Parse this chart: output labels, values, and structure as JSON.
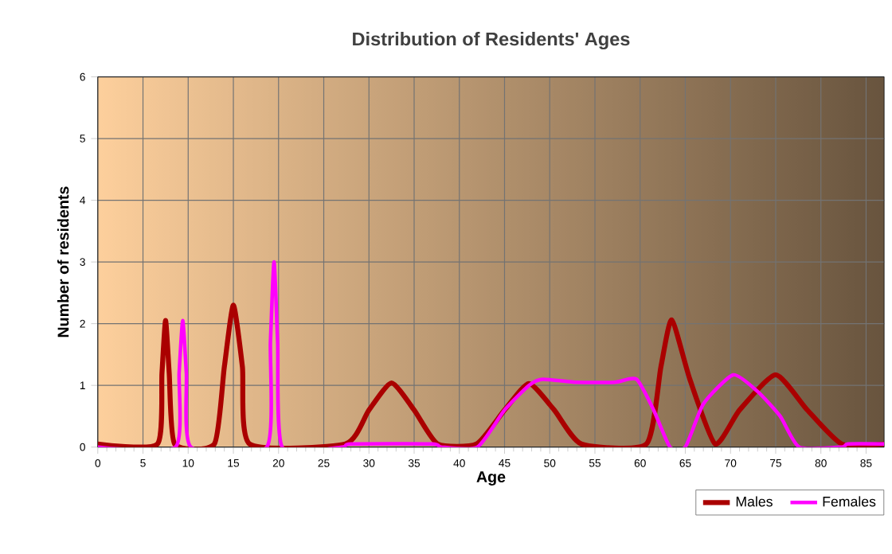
{
  "chart_data": {
    "type": "line",
    "title": "Distribution of Residents' Ages",
    "xlabel": "Age",
    "ylabel": "Number of residents",
    "xlim": [
      0,
      87
    ],
    "ylim": [
      0,
      6
    ],
    "xticks": [
      0,
      5,
      10,
      15,
      20,
      25,
      30,
      35,
      40,
      45,
      50,
      55,
      60,
      65,
      70,
      75,
      80,
      85
    ],
    "yticks": [
      0,
      1,
      2,
      3,
      4,
      5,
      6
    ],
    "grid": true,
    "legend": "bottom right",
    "marker": "none",
    "line_style": "solid",
    "series": [
      {
        "name": "Males",
        "color": "#aa0000",
        "x": [
          0,
          6.6,
          7.1,
          7.5,
          7.9,
          8.5,
          12.9,
          14.0,
          15.0,
          16.0,
          16.8,
          27.4,
          30,
          32.5,
          35,
          37.6,
          41.9,
          45,
          47.7,
          50.5,
          53.5,
          60.7,
          62.3,
          63.5,
          65.5,
          68.3,
          71,
          75,
          78.5,
          82.3,
          87
        ],
        "values": [
          0.05,
          0.05,
          1.2,
          2.05,
          1.2,
          0.05,
          0.05,
          1.3,
          2.3,
          1.3,
          0.05,
          0.05,
          0.6,
          1.04,
          0.6,
          0.05,
          0.05,
          0.6,
          1.03,
          0.6,
          0.05,
          0.05,
          1.3,
          2.06,
          1.1,
          0.05,
          0.6,
          1.17,
          0.6,
          0.05,
          0.05
        ]
      },
      {
        "name": "Females",
        "color": "#ff00ff",
        "x": [
          0,
          8.6,
          9.0,
          9.4,
          9.8,
          10.3,
          18.7,
          19.1,
          19.5,
          19.9,
          20.4,
          27,
          28,
          37,
          38,
          42,
          45,
          47.7,
          49.2,
          53,
          57.2,
          59.6,
          61.5,
          63.3,
          65,
          67,
          70.3,
          73,
          75.5,
          77.6,
          82.3,
          83,
          87
        ],
        "values": [
          0,
          0,
          1.2,
          2.05,
          1.2,
          0,
          0,
          1.7,
          3.0,
          1.7,
          0,
          0,
          0.05,
          0.05,
          0,
          0,
          0.6,
          1.0,
          1.1,
          1.05,
          1.05,
          1.1,
          0.6,
          0,
          0,
          0.7,
          1.17,
          0.9,
          0.5,
          0,
          0,
          0.05,
          0.05
        ]
      }
    ]
  }
}
